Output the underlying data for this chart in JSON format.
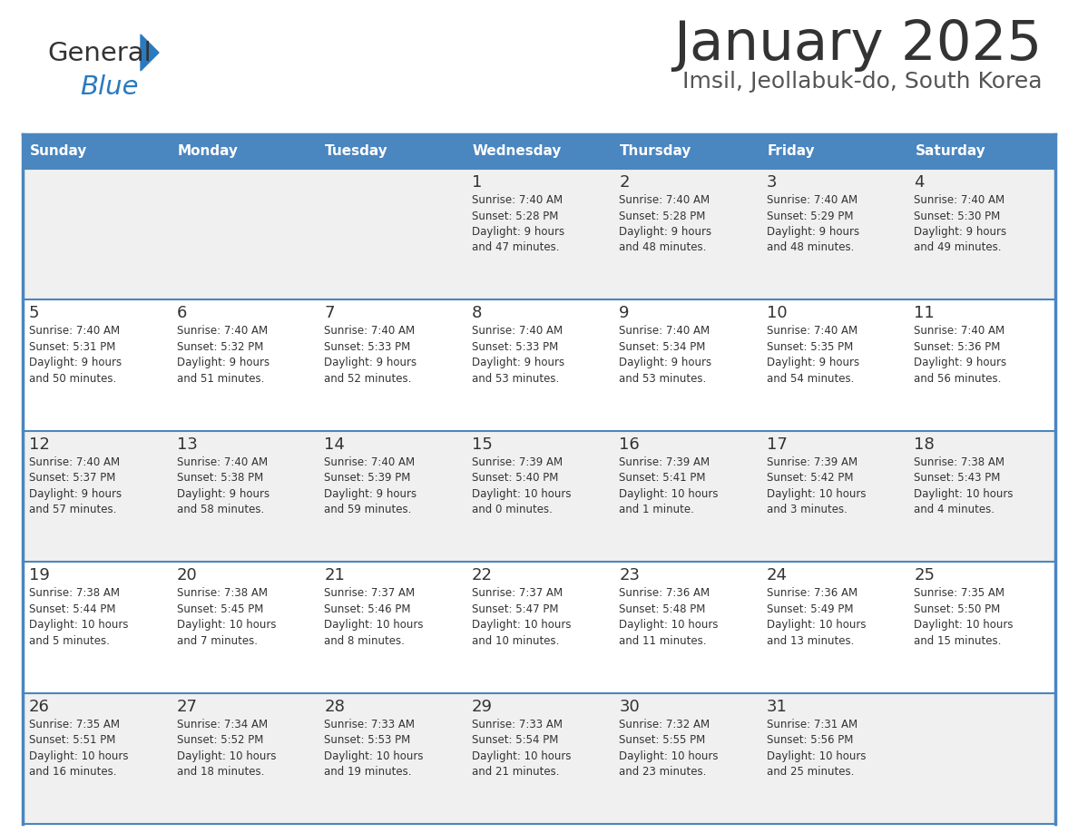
{
  "title": "January 2025",
  "subtitle": "Imsil, Jeollabuk-do, South Korea",
  "days_of_week": [
    "Sunday",
    "Monday",
    "Tuesday",
    "Wednesday",
    "Thursday",
    "Friday",
    "Saturday"
  ],
  "header_bg": "#4a86c0",
  "header_text": "#ffffff",
  "row_bg_odd": "#f0f0f0",
  "row_bg_even": "#ffffff",
  "border_color": "#4a86c0",
  "day_number_color": "#333333",
  "cell_text_color": "#333333",
  "title_color": "#333333",
  "subtitle_color": "#555555",
  "logo_general_color": "#333333",
  "logo_blue_color": "#2a7abf",
  "fig_width": 11.88,
  "fig_height": 9.18,
  "dpi": 100,
  "calendar_data": [
    {
      "day": 1,
      "col": 3,
      "row": 0,
      "sunrise": "7:40 AM",
      "sunset": "5:28 PM",
      "daylight_hours": 9,
      "daylight_minutes": 47
    },
    {
      "day": 2,
      "col": 4,
      "row": 0,
      "sunrise": "7:40 AM",
      "sunset": "5:28 PM",
      "daylight_hours": 9,
      "daylight_minutes": 48
    },
    {
      "day": 3,
      "col": 5,
      "row": 0,
      "sunrise": "7:40 AM",
      "sunset": "5:29 PM",
      "daylight_hours": 9,
      "daylight_minutes": 48
    },
    {
      "day": 4,
      "col": 6,
      "row": 0,
      "sunrise": "7:40 AM",
      "sunset": "5:30 PM",
      "daylight_hours": 9,
      "daylight_minutes": 49
    },
    {
      "day": 5,
      "col": 0,
      "row": 1,
      "sunrise": "7:40 AM",
      "sunset": "5:31 PM",
      "daylight_hours": 9,
      "daylight_minutes": 50
    },
    {
      "day": 6,
      "col": 1,
      "row": 1,
      "sunrise": "7:40 AM",
      "sunset": "5:32 PM",
      "daylight_hours": 9,
      "daylight_minutes": 51
    },
    {
      "day": 7,
      "col": 2,
      "row": 1,
      "sunrise": "7:40 AM",
      "sunset": "5:33 PM",
      "daylight_hours": 9,
      "daylight_minutes": 52
    },
    {
      "day": 8,
      "col": 3,
      "row": 1,
      "sunrise": "7:40 AM",
      "sunset": "5:33 PM",
      "daylight_hours": 9,
      "daylight_minutes": 53
    },
    {
      "day": 9,
      "col": 4,
      "row": 1,
      "sunrise": "7:40 AM",
      "sunset": "5:34 PM",
      "daylight_hours": 9,
      "daylight_minutes": 53
    },
    {
      "day": 10,
      "col": 5,
      "row": 1,
      "sunrise": "7:40 AM",
      "sunset": "5:35 PM",
      "daylight_hours": 9,
      "daylight_minutes": 54
    },
    {
      "day": 11,
      "col": 6,
      "row": 1,
      "sunrise": "7:40 AM",
      "sunset": "5:36 PM",
      "daylight_hours": 9,
      "daylight_minutes": 56
    },
    {
      "day": 12,
      "col": 0,
      "row": 2,
      "sunrise": "7:40 AM",
      "sunset": "5:37 PM",
      "daylight_hours": 9,
      "daylight_minutes": 57
    },
    {
      "day": 13,
      "col": 1,
      "row": 2,
      "sunrise": "7:40 AM",
      "sunset": "5:38 PM",
      "daylight_hours": 9,
      "daylight_minutes": 58
    },
    {
      "day": 14,
      "col": 2,
      "row": 2,
      "sunrise": "7:40 AM",
      "sunset": "5:39 PM",
      "daylight_hours": 9,
      "daylight_minutes": 59
    },
    {
      "day": 15,
      "col": 3,
      "row": 2,
      "sunrise": "7:39 AM",
      "sunset": "5:40 PM",
      "daylight_hours": 10,
      "daylight_minutes": 0
    },
    {
      "day": 16,
      "col": 4,
      "row": 2,
      "sunrise": "7:39 AM",
      "sunset": "5:41 PM",
      "daylight_hours": 10,
      "daylight_minutes": 1
    },
    {
      "day": 17,
      "col": 5,
      "row": 2,
      "sunrise": "7:39 AM",
      "sunset": "5:42 PM",
      "daylight_hours": 10,
      "daylight_minutes": 3
    },
    {
      "day": 18,
      "col": 6,
      "row": 2,
      "sunrise": "7:38 AM",
      "sunset": "5:43 PM",
      "daylight_hours": 10,
      "daylight_minutes": 4
    },
    {
      "day": 19,
      "col": 0,
      "row": 3,
      "sunrise": "7:38 AM",
      "sunset": "5:44 PM",
      "daylight_hours": 10,
      "daylight_minutes": 5
    },
    {
      "day": 20,
      "col": 1,
      "row": 3,
      "sunrise": "7:38 AM",
      "sunset": "5:45 PM",
      "daylight_hours": 10,
      "daylight_minutes": 7
    },
    {
      "day": 21,
      "col": 2,
      "row": 3,
      "sunrise": "7:37 AM",
      "sunset": "5:46 PM",
      "daylight_hours": 10,
      "daylight_minutes": 8
    },
    {
      "day": 22,
      "col": 3,
      "row": 3,
      "sunrise": "7:37 AM",
      "sunset": "5:47 PM",
      "daylight_hours": 10,
      "daylight_minutes": 10
    },
    {
      "day": 23,
      "col": 4,
      "row": 3,
      "sunrise": "7:36 AM",
      "sunset": "5:48 PM",
      "daylight_hours": 10,
      "daylight_minutes": 11
    },
    {
      "day": 24,
      "col": 5,
      "row": 3,
      "sunrise": "7:36 AM",
      "sunset": "5:49 PM",
      "daylight_hours": 10,
      "daylight_minutes": 13
    },
    {
      "day": 25,
      "col": 6,
      "row": 3,
      "sunrise": "7:35 AM",
      "sunset": "5:50 PM",
      "daylight_hours": 10,
      "daylight_minutes": 15
    },
    {
      "day": 26,
      "col": 0,
      "row": 4,
      "sunrise": "7:35 AM",
      "sunset": "5:51 PM",
      "daylight_hours": 10,
      "daylight_minutes": 16
    },
    {
      "day": 27,
      "col": 1,
      "row": 4,
      "sunrise": "7:34 AM",
      "sunset": "5:52 PM",
      "daylight_hours": 10,
      "daylight_minutes": 18
    },
    {
      "day": 28,
      "col": 2,
      "row": 4,
      "sunrise": "7:33 AM",
      "sunset": "5:53 PM",
      "daylight_hours": 10,
      "daylight_minutes": 19
    },
    {
      "day": 29,
      "col": 3,
      "row": 4,
      "sunrise": "7:33 AM",
      "sunset": "5:54 PM",
      "daylight_hours": 10,
      "daylight_minutes": 21
    },
    {
      "day": 30,
      "col": 4,
      "row": 4,
      "sunrise": "7:32 AM",
      "sunset": "5:55 PM",
      "daylight_hours": 10,
      "daylight_minutes": 23
    },
    {
      "day": 31,
      "col": 5,
      "row": 4,
      "sunrise": "7:31 AM",
      "sunset": "5:56 PM",
      "daylight_hours": 10,
      "daylight_minutes": 25
    }
  ]
}
